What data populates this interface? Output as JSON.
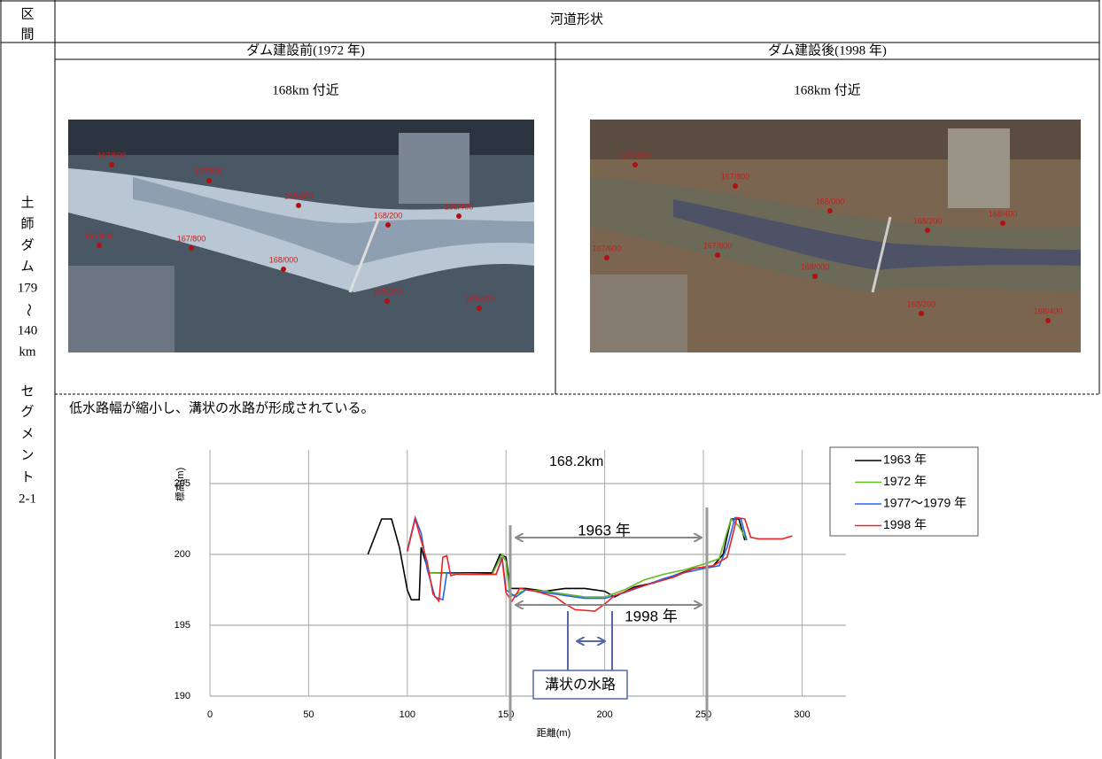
{
  "header": {
    "section": [
      "区",
      "間"
    ],
    "title": "河道形状",
    "before": "ダム建設前(1972 年)",
    "after": "ダム建設後(1998 年)"
  },
  "section": [
    "土",
    "師",
    "ダ",
    "ム",
    "179",
    "〜",
    "140",
    "km",
    "セ",
    "グ",
    "メ",
    "ン",
    "ト",
    "2-1"
  ],
  "photos": [
    {
      "caption": "168km 付近",
      "markers": [
        "167/600",
        "167/800",
        "168/000",
        "168/200",
        "168/400",
        "167/600",
        "167/800",
        "168/000",
        "168/200",
        "168/400"
      ]
    },
    {
      "caption": "168km 付近",
      "markers": [
        "167/600",
        "167/800",
        "168/000",
        "168/200",
        "168/400",
        "167/600",
        "167/800",
        "168/000",
        "168/200",
        "168/400"
      ]
    }
  ],
  "note": "低水路幅が縮小し、溝状の水路が形成されている。",
  "chart_data": {
    "type": "line",
    "title": "168.2km",
    "x_label": "距離(m)",
    "y_label": "標高(m)",
    "xlim": [
      0,
      320
    ],
    "ylim": [
      190,
      207
    ],
    "xticks": [
      0,
      50,
      100,
      150,
      200,
      250,
      300
    ],
    "yticks": [
      190,
      195,
      200,
      205
    ],
    "grid": true,
    "legend": "upper right",
    "annotations": [
      "1963 年",
      "1998 年",
      "溝状の水路"
    ],
    "series": [
      {
        "name": "1963 年",
        "color": "#000000",
        "x": [
          80,
          87,
          92,
          96,
          100,
          102,
          106,
          107,
          111,
          143,
          147,
          150,
          152,
          160,
          170,
          180,
          190,
          200,
          205,
          215,
          225,
          235,
          245,
          255,
          260,
          264,
          268,
          271
        ],
        "values": [
          200,
          202.5,
          202.5,
          200.5,
          197.5,
          196.8,
          196.8,
          200.5,
          198.7,
          198.7,
          200,
          199.8,
          197.6,
          197.6,
          197.4,
          197.6,
          197.6,
          197.4,
          197,
          197.7,
          198,
          198.5,
          199,
          199.2,
          200,
          202.5,
          202.5,
          201
        ]
      },
      {
        "name": "1972 年",
        "color": "#66bb22",
        "x": [
          111,
          143,
          148,
          150,
          152,
          160,
          170,
          180,
          190,
          200,
          210,
          220,
          230,
          240,
          250,
          258,
          264,
          268,
          272
        ],
        "values": [
          198.7,
          198.6,
          200,
          199.5,
          197,
          197.5,
          197.4,
          197.2,
          197,
          197,
          197.5,
          198.2,
          198.6,
          198.9,
          199.3,
          199.7,
          202.5,
          202,
          201
        ]
      },
      {
        "name": "1977〜1979 年",
        "color": "#2266ee",
        "x": [
          100,
          104,
          107,
          110,
          114,
          118,
          120,
          130,
          145,
          148,
          150,
          155,
          160,
          170,
          180,
          190,
          200,
          210,
          220,
          230,
          240,
          250,
          258,
          262,
          266,
          269,
          272
        ],
        "values": [
          200.3,
          202.6,
          201.5,
          199,
          197,
          196.8,
          198.7,
          198.6,
          198.6,
          199.8,
          197.5,
          197,
          197.5,
          197.3,
          197.1,
          196.9,
          196.9,
          197.3,
          197.8,
          198.3,
          198.7,
          199,
          199.2,
          200.5,
          202.6,
          202.5,
          201
        ]
      },
      {
        "name": "1998 年",
        "color": "#ee2222",
        "x": [
          100,
          104,
          107,
          110,
          113,
          116,
          118,
          120,
          122,
          125,
          145,
          148,
          150,
          153,
          157,
          165,
          175,
          180,
          185,
          195,
          200,
          205,
          215,
          225,
          235,
          245,
          255,
          262,
          267,
          271,
          274,
          278,
          290,
          295
        ],
        "values": [
          200.2,
          202.5,
          201,
          199.5,
          197.2,
          196.7,
          199.8,
          199.9,
          198.5,
          198.6,
          198.6,
          199.7,
          197.3,
          196.7,
          197.6,
          197.4,
          197,
          196.5,
          196.1,
          196,
          196.5,
          197.1,
          197.6,
          198,
          198.4,
          199,
          199.2,
          199.8,
          202.6,
          202.5,
          201.2,
          201.1,
          201.1,
          201.3
        ]
      }
    ]
  }
}
